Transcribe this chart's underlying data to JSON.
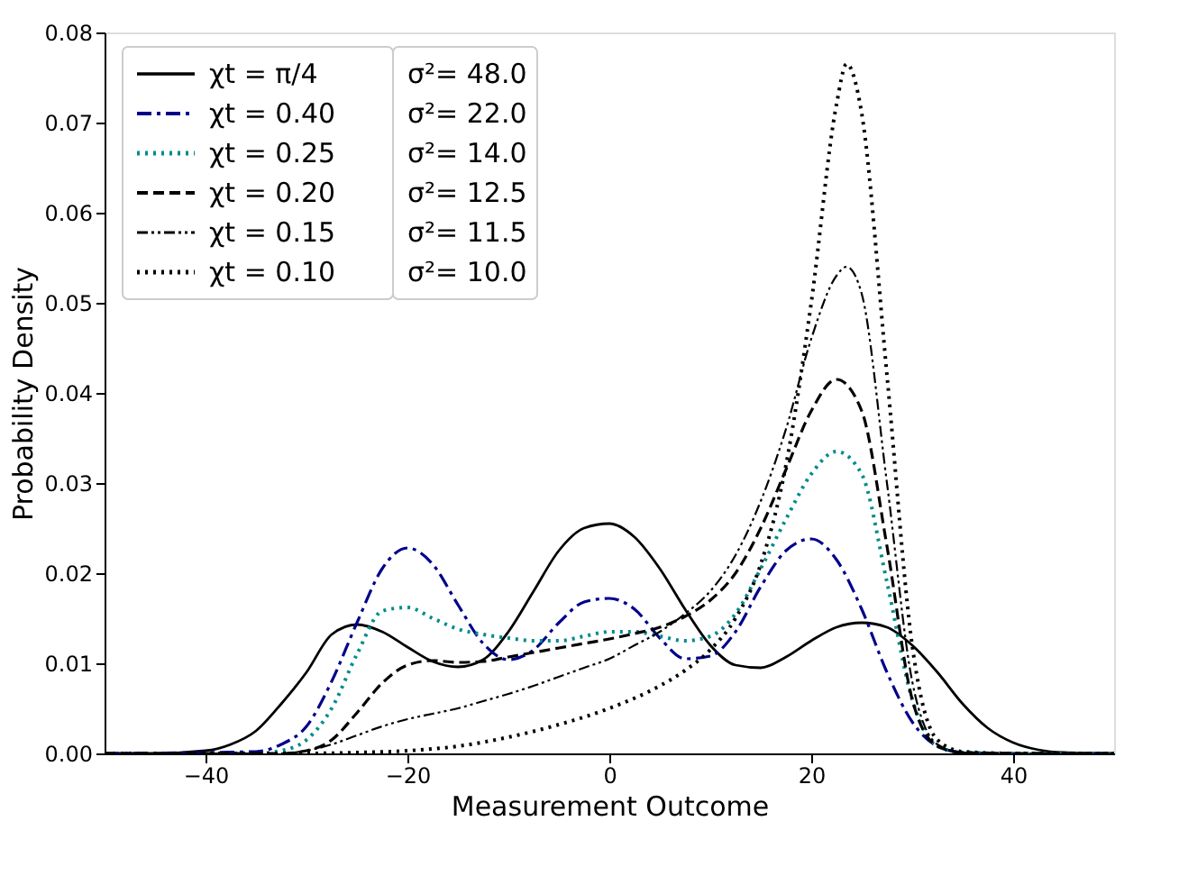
{
  "chart_data": {
    "type": "line",
    "xlabel": "Measurement Outcome",
    "ylabel": "Probability Density",
    "xlim": [
      -50,
      50
    ],
    "xticks": [
      -40,
      -20,
      0,
      20,
      40
    ],
    "ylim": [
      0,
      0.08
    ],
    "yticks": [
      {
        "value": 0,
        "label": "0.00"
      },
      {
        "value": 0.01,
        "label": "0.01"
      },
      {
        "value": 0.02,
        "label": "0.02"
      },
      {
        "value": 0.03,
        "label": "0.03"
      },
      {
        "value": 0.04,
        "label": "0.04"
      },
      {
        "value": 0.05,
        "label": "0.05"
      },
      {
        "value": 0.06,
        "label": "0.06"
      },
      {
        "value": 0.07,
        "label": "0.07"
      },
      {
        "value": 0.08,
        "label": "0.08"
      }
    ],
    "grid": false,
    "legend": "top left",
    "annotations": [
      "σ²= 48.0",
      "σ²= 22.0",
      "σ²= 14.0",
      "σ²= 12.5",
      "σ²= 11.5",
      "σ²= 10.0"
    ],
    "series": [
      {
        "name": "χt = π/4",
        "color": "#000000",
        "line_style": "solid",
        "x": [
          -50,
          -45,
          -40,
          -37.5,
          -35,
          -32.5,
          -30,
          -27.5,
          -25,
          -22.5,
          -20,
          -17.5,
          -15,
          -12.5,
          -10,
          -7.5,
          -5,
          -2.5,
          0,
          2.5,
          5,
          7.5,
          10,
          12.5,
          15,
          17.5,
          20,
          22.5,
          25,
          27.5,
          30,
          32.5,
          35,
          37.5,
          40,
          42.5,
          45,
          50
        ],
        "values": [
          0,
          0,
          0.0003,
          0.001,
          0.0025,
          0.0055,
          0.009,
          0.0132,
          0.0143,
          0.0135,
          0.0118,
          0.0102,
          0.0096,
          0.0104,
          0.0135,
          0.018,
          0.0225,
          0.025,
          0.0255,
          0.024,
          0.0205,
          0.016,
          0.012,
          0.0098,
          0.0095,
          0.0107,
          0.0125,
          0.014,
          0.0145,
          0.014,
          0.012,
          0.009,
          0.0055,
          0.0028,
          0.0012,
          0.0004,
          0.0001,
          0
        ]
      },
      {
        "name": "χt = 0.40",
        "color": "#00008b",
        "line_style": "dashdot",
        "x": [
          -50,
          -35,
          -32.5,
          -30,
          -27.5,
          -25,
          -22.5,
          -20,
          -17.5,
          -15,
          -12.5,
          -10,
          -7.5,
          -5,
          -2.5,
          0,
          2.5,
          5,
          7.5,
          10,
          12.5,
          15,
          17.5,
          20,
          22.5,
          25,
          27.5,
          30,
          32.5,
          35,
          40,
          50
        ],
        "values": [
          0,
          0.0002,
          0.001,
          0.003,
          0.008,
          0.0145,
          0.0205,
          0.0228,
          0.021,
          0.0165,
          0.0122,
          0.0104,
          0.0115,
          0.0145,
          0.0168,
          0.0172,
          0.016,
          0.0128,
          0.0105,
          0.0108,
          0.0135,
          0.0185,
          0.0225,
          0.0238,
          0.0215,
          0.016,
          0.009,
          0.0035,
          0.0008,
          0.0001,
          0,
          0
        ]
      },
      {
        "name": "χt = 0.25",
        "color": "#008b8b",
        "line_style": "dotted",
        "x": [
          -50,
          -35,
          -32.5,
          -30,
          -27.5,
          -25,
          -22.5,
          -20,
          -17.5,
          -15,
          -12.5,
          -10,
          -7.5,
          -5,
          -2.5,
          0,
          2.5,
          5,
          7.5,
          10,
          12.5,
          15,
          17.5,
          20,
          22.5,
          25,
          27.5,
          30,
          32.5,
          35,
          40,
          50
        ],
        "values": [
          0,
          0,
          0.0003,
          0.0015,
          0.005,
          0.011,
          0.0158,
          0.0162,
          0.015,
          0.0138,
          0.0132,
          0.0128,
          0.0125,
          0.0125,
          0.013,
          0.0135,
          0.0135,
          0.013,
          0.0125,
          0.013,
          0.0155,
          0.0205,
          0.026,
          0.031,
          0.0335,
          0.031,
          0.019,
          0.006,
          0.0008,
          0.0001,
          0,
          0
        ]
      },
      {
        "name": "χt = 0.20",
        "color": "#000000",
        "line_style": "dashed",
        "x": [
          -50,
          -32.5,
          -30,
          -27.5,
          -25,
          -22.5,
          -20,
          -17.5,
          -15,
          -12.5,
          -10,
          -7.5,
          -5,
          -2.5,
          0,
          2.5,
          5,
          7.5,
          10,
          12.5,
          15,
          17.5,
          20,
          22.5,
          25,
          27.5,
          30,
          32.5,
          35,
          40,
          50
        ],
        "values": [
          0,
          0,
          0.0003,
          0.0015,
          0.0045,
          0.0078,
          0.0098,
          0.0103,
          0.0101,
          0.0102,
          0.0107,
          0.0112,
          0.0117,
          0.0122,
          0.0127,
          0.0133,
          0.014,
          0.0152,
          0.017,
          0.02,
          0.025,
          0.0315,
          0.038,
          0.0415,
          0.038,
          0.023,
          0.006,
          0.0008,
          0.0001,
          0,
          0
        ]
      },
      {
        "name": "χt = 0.15",
        "color": "#000000",
        "line_style": "dashdotdot",
        "x": [
          -50,
          -32.5,
          -30,
          -27.5,
          -25,
          -22.5,
          -20,
          -17.5,
          -15,
          -12.5,
          -10,
          -7.5,
          -5,
          -2.5,
          0,
          2.5,
          5,
          7.5,
          10,
          12.5,
          15,
          17.5,
          20,
          22.5,
          23.5,
          25,
          27.5,
          30,
          32.5,
          35,
          40,
          50
        ],
        "values": [
          0,
          0,
          0.0003,
          0.001,
          0.002,
          0.003,
          0.0038,
          0.0044,
          0.005,
          0.0058,
          0.0066,
          0.0075,
          0.0085,
          0.0095,
          0.0105,
          0.012,
          0.0135,
          0.0155,
          0.018,
          0.022,
          0.028,
          0.036,
          0.046,
          0.053,
          0.054,
          0.051,
          0.03,
          0.008,
          0.001,
          0.0001,
          0,
          0
        ]
      },
      {
        "name": "χt = 0.10",
        "color": "#000000",
        "line_style": "dotted",
        "x": [
          -50,
          -30,
          -25,
          -20,
          -15,
          -10,
          -5,
          0,
          5,
          7.5,
          10,
          12.5,
          15,
          17.5,
          20,
          22.5,
          23.5,
          25,
          27.5,
          30,
          32.5,
          35,
          40,
          50
        ],
        "values": [
          0,
          0,
          0.0001,
          0.0003,
          0.0008,
          0.0018,
          0.0032,
          0.005,
          0.0075,
          0.0092,
          0.0115,
          0.015,
          0.021,
          0.032,
          0.05,
          0.072,
          0.0765,
          0.071,
          0.042,
          0.012,
          0.0015,
          0.0002,
          0,
          0
        ]
      }
    ]
  }
}
